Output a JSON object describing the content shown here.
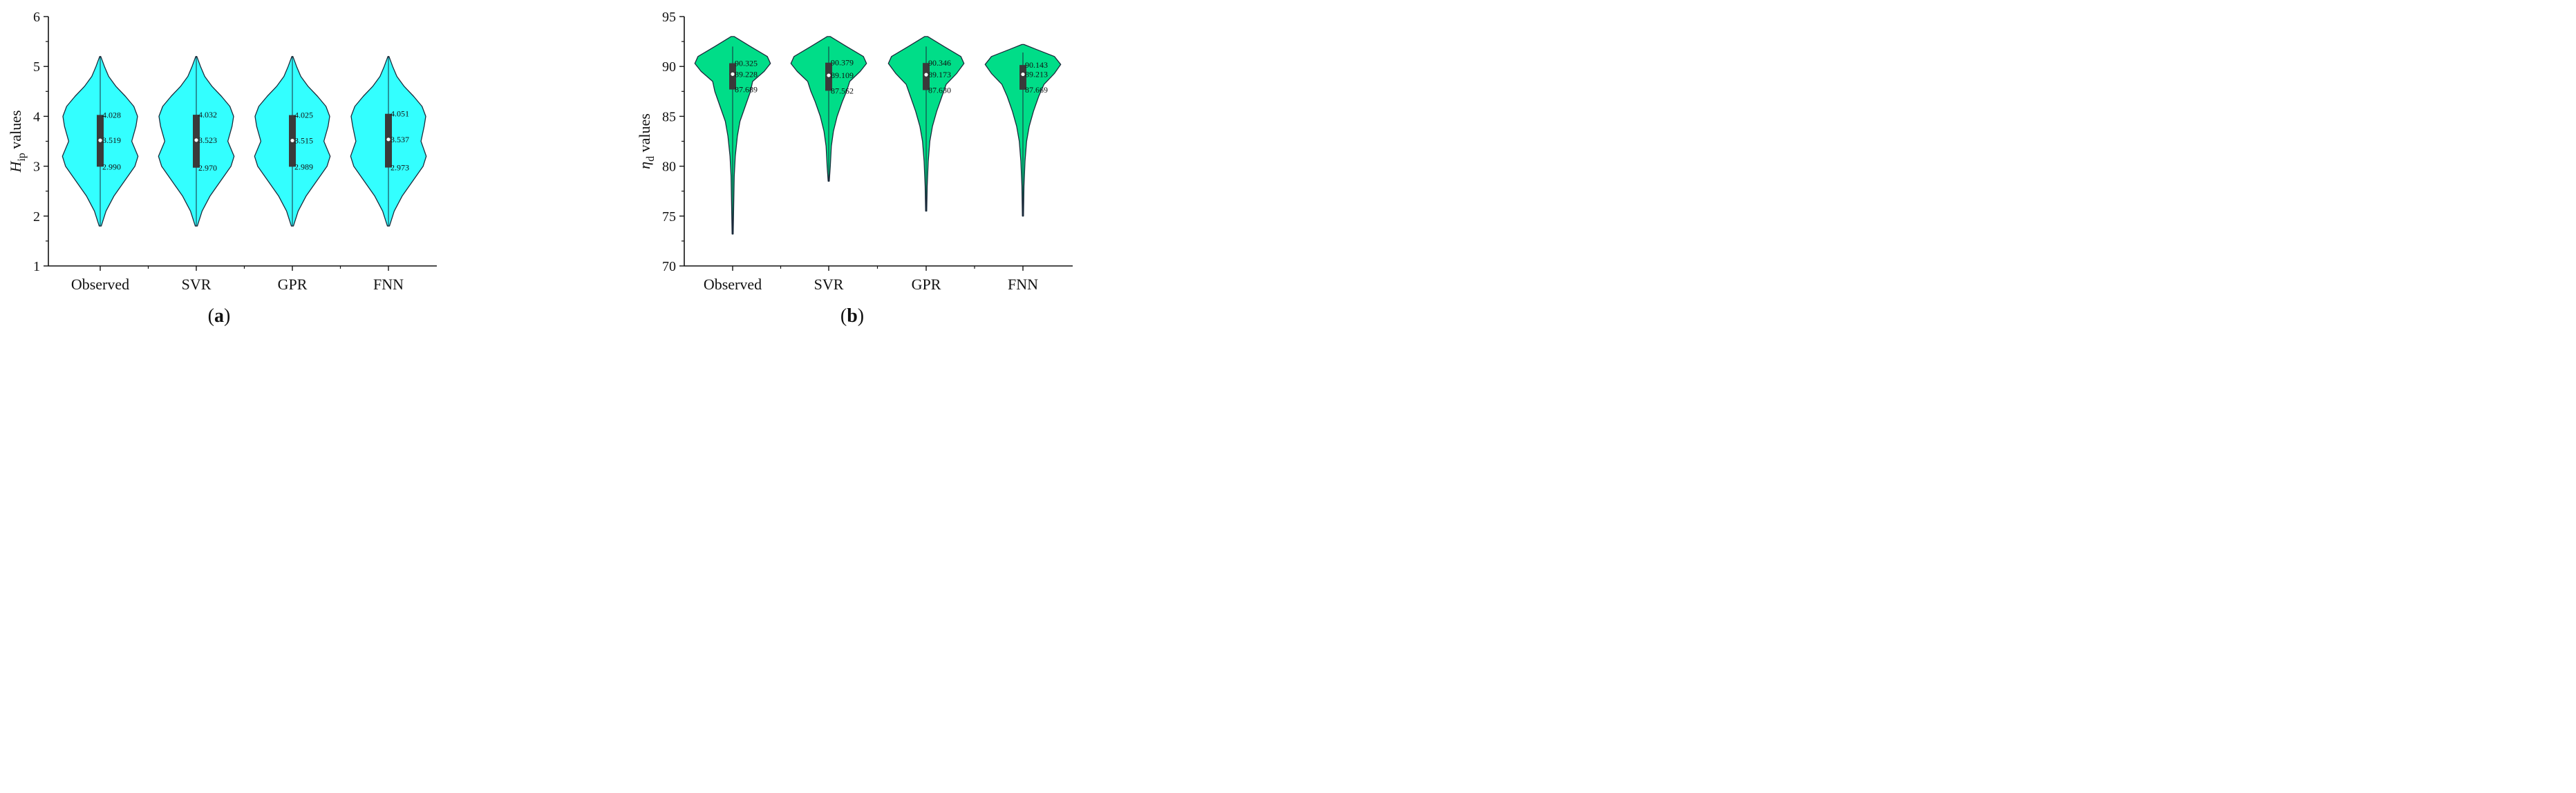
{
  "chart_data": [
    {
      "type": "violin",
      "panel": {
        "open": "(",
        "letter": "a",
        "close": ")"
      },
      "ylabel": {
        "symbol": "H",
        "subscript": "ip",
        "rest": " values"
      },
      "ylim": [
        1,
        6
      ],
      "yticks": [
        1,
        2,
        3,
        4,
        5,
        6
      ],
      "categories": [
        "Observed",
        "SVR",
        "GPR",
        "FNN"
      ],
      "fill_color": "#33FFFF",
      "box_color": "#3a3a3a",
      "grid": false,
      "violins": [
        {
          "name": "Observed",
          "min": 1.8,
          "max": 5.2,
          "q1": 2.99,
          "median": 3.519,
          "q3": 4.028,
          "whisker_low": 1.8,
          "whisker_high": 5.2,
          "labels": {
            "q3": "4.028",
            "median": "3.519",
            "q1": "2.990"
          },
          "density": [
            [
              1.8,
              0.02
            ],
            [
              2.1,
              0.11
            ],
            [
              2.4,
              0.26
            ],
            [
              2.7,
              0.46
            ],
            [
              3.0,
              0.66
            ],
            [
              3.2,
              0.72
            ],
            [
              3.5,
              0.6
            ],
            [
              3.8,
              0.68
            ],
            [
              4.0,
              0.71
            ],
            [
              4.2,
              0.64
            ],
            [
              4.4,
              0.48
            ],
            [
              4.6,
              0.3
            ],
            [
              4.8,
              0.16
            ],
            [
              5.0,
              0.08
            ],
            [
              5.2,
              0.01
            ]
          ]
        },
        {
          "name": "SVR",
          "min": 1.8,
          "max": 5.2,
          "q1": 2.97,
          "median": 3.523,
          "q3": 4.032,
          "whisker_low": 1.8,
          "whisker_high": 5.2,
          "labels": {
            "q3": "4.032",
            "median": "3.523",
            "q1": "2.970"
          },
          "density": [
            [
              1.8,
              0.02
            ],
            [
              2.1,
              0.11
            ],
            [
              2.4,
              0.26
            ],
            [
              2.7,
              0.46
            ],
            [
              3.0,
              0.66
            ],
            [
              3.2,
              0.72
            ],
            [
              3.5,
              0.6
            ],
            [
              3.8,
              0.68
            ],
            [
              4.0,
              0.71
            ],
            [
              4.2,
              0.64
            ],
            [
              4.4,
              0.48
            ],
            [
              4.6,
              0.3
            ],
            [
              4.8,
              0.16
            ],
            [
              5.0,
              0.08
            ],
            [
              5.2,
              0.01
            ]
          ]
        },
        {
          "name": "GPR",
          "min": 1.8,
          "max": 5.2,
          "q1": 2.989,
          "median": 3.515,
          "q3": 4.025,
          "whisker_low": 1.8,
          "whisker_high": 5.2,
          "labels": {
            "q3": "4.025",
            "median": "3.515",
            "q1": "2.989"
          },
          "density": [
            [
              1.8,
              0.02
            ],
            [
              2.1,
              0.11
            ],
            [
              2.4,
              0.26
            ],
            [
              2.7,
              0.46
            ],
            [
              3.0,
              0.66
            ],
            [
              3.2,
              0.72
            ],
            [
              3.5,
              0.6
            ],
            [
              3.8,
              0.68
            ],
            [
              4.0,
              0.71
            ],
            [
              4.2,
              0.64
            ],
            [
              4.4,
              0.48
            ],
            [
              4.6,
              0.3
            ],
            [
              4.8,
              0.16
            ],
            [
              5.0,
              0.08
            ],
            [
              5.2,
              0.01
            ]
          ]
        },
        {
          "name": "FNN",
          "min": 1.8,
          "max": 5.2,
          "q1": 2.973,
          "median": 3.537,
          "q3": 4.051,
          "whisker_low": 1.8,
          "whisker_high": 5.2,
          "labels": {
            "q3": "4.051",
            "median": "3.537",
            "q1": "2.973"
          },
          "density": [
            [
              1.8,
              0.02
            ],
            [
              2.1,
              0.11
            ],
            [
              2.4,
              0.26
            ],
            [
              2.7,
              0.46
            ],
            [
              3.0,
              0.66
            ],
            [
              3.2,
              0.72
            ],
            [
              3.5,
              0.62
            ],
            [
              3.8,
              0.68
            ],
            [
              4.0,
              0.71
            ],
            [
              4.2,
              0.64
            ],
            [
              4.4,
              0.48
            ],
            [
              4.6,
              0.3
            ],
            [
              4.8,
              0.16
            ],
            [
              5.0,
              0.08
            ],
            [
              5.2,
              0.01
            ]
          ]
        }
      ]
    },
    {
      "type": "violin",
      "panel": {
        "open": "(",
        "letter": "b",
        "close": ")"
      },
      "ylabel": {
        "symbol": "η",
        "subscript": "d",
        "rest": " values"
      },
      "ylim": [
        70,
        95
      ],
      "yticks": [
        70,
        75,
        80,
        85,
        90,
        95
      ],
      "categories": [
        "Observed",
        "SVR",
        "GPR",
        "FNN"
      ],
      "fill_color": "#00DD88",
      "box_color": "#3a3a3a",
      "grid": false,
      "violins": [
        {
          "name": "Observed",
          "min": 73.2,
          "max": 93.0,
          "q1": 87.689,
          "median": 89.228,
          "q3": 90.325,
          "whisker_low": 73.2,
          "whisker_high": 92.0,
          "labels": {
            "q3": "90.325",
            "median": "89.228",
            "q1": "87.689"
          },
          "density": [
            [
              73.2,
              0.01
            ],
            [
              76,
              0.02
            ],
            [
              79,
              0.03
            ],
            [
              81,
              0.05
            ],
            [
              83,
              0.09
            ],
            [
              84.5,
              0.14
            ],
            [
              86,
              0.24
            ],
            [
              87.5,
              0.34
            ],
            [
              88.5,
              0.38
            ],
            [
              89.5,
              0.6
            ],
            [
              90.3,
              0.72
            ],
            [
              91,
              0.66
            ],
            [
              92,
              0.34
            ],
            [
              93.0,
              0.03
            ]
          ]
        },
        {
          "name": "SVR",
          "min": 78.5,
          "max": 93.0,
          "q1": 87.562,
          "median": 89.109,
          "q3": 90.379,
          "whisker_low": 78.5,
          "whisker_high": 92.0,
          "labels": {
            "q3": "90.379",
            "median": "89.109",
            "q1": "87.562"
          },
          "density": [
            [
              78.5,
              0.01
            ],
            [
              80,
              0.03
            ],
            [
              82,
              0.05
            ],
            [
              83.5,
              0.09
            ],
            [
              85,
              0.16
            ],
            [
              86.5,
              0.26
            ],
            [
              87.5,
              0.34
            ],
            [
              88.5,
              0.4
            ],
            [
              89.5,
              0.6
            ],
            [
              90.3,
              0.72
            ],
            [
              91,
              0.66
            ],
            [
              92,
              0.34
            ],
            [
              93.0,
              0.03
            ]
          ]
        },
        {
          "name": "GPR",
          "min": 75.5,
          "max": 93.0,
          "q1": 87.63,
          "median": 89.173,
          "q3": 90.346,
          "whisker_low": 75.5,
          "whisker_high": 92.0,
          "labels": {
            "q3": "90.346",
            "median": "89.173",
            "q1": "87.630"
          },
          "density": [
            [
              75.5,
              0.01
            ],
            [
              78,
              0.02
            ],
            [
              80.5,
              0.04
            ],
            [
              82.5,
              0.07
            ],
            [
              84,
              0.12
            ],
            [
              85.5,
              0.2
            ],
            [
              87,
              0.3
            ],
            [
              88.2,
              0.38
            ],
            [
              89.3,
              0.58
            ],
            [
              90.3,
              0.72
            ],
            [
              91,
              0.66
            ],
            [
              92,
              0.34
            ],
            [
              93.0,
              0.03
            ]
          ]
        },
        {
          "name": "FNN",
          "min": 75.0,
          "max": 92.2,
          "q1": 87.669,
          "median": 89.213,
          "q3": 90.143,
          "whisker_low": 75.0,
          "whisker_high": 91.4,
          "labels": {
            "q3": "90.143",
            "median": "89.213",
            "q1": "87.669"
          },
          "density": [
            [
              75.0,
              0.01
            ],
            [
              78,
              0.02
            ],
            [
              80.5,
              0.04
            ],
            [
              82.5,
              0.07
            ],
            [
              84,
              0.12
            ],
            [
              85.5,
              0.2
            ],
            [
              87,
              0.3
            ],
            [
              88.2,
              0.4
            ],
            [
              89.3,
              0.6
            ],
            [
              90.2,
              0.72
            ],
            [
              91,
              0.6
            ],
            [
              91.7,
              0.26
            ],
            [
              92.2,
              0.02
            ]
          ]
        }
      ]
    }
  ]
}
